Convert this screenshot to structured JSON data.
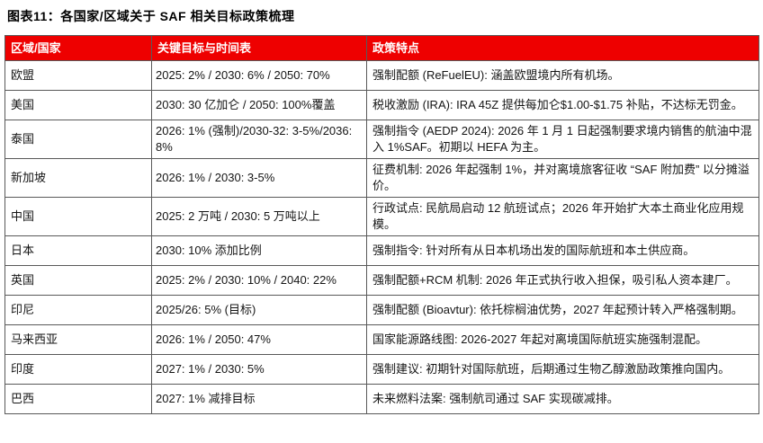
{
  "title": "图表11：各国家/区域关于 SAF 相关目标政策梳理",
  "colors": {
    "header_bg": "#ee0000",
    "header_text": "#ffffff",
    "border": "#595959",
    "text": "#141414"
  },
  "table": {
    "headers": [
      "区域/国家",
      "关键目标与时间表",
      "政策特点"
    ],
    "rows": [
      {
        "region": "欧盟",
        "target": "2025: 2% / 2030: 6% / 2050: 70%",
        "policy": "强制配额 (ReFuelEU): 涵盖欧盟境内所有机场。"
      },
      {
        "region": "美国",
        "target": "2030: 30 亿加仑 / 2050: 100%覆盖",
        "policy": "税收激励 (IRA): IRA 45Z 提供每加仑$1.00-$1.75 补贴，不达标无罚金。"
      },
      {
        "region": "泰国",
        "target": "2026: 1% (强制)/2030-32: 3-5%/2036: 8%",
        "policy": "强制指令 (AEDP 2024): 2026 年 1 月 1 日起强制要求境内销售的航油中混入 1%SAF。初期以 HEFA 为主。"
      },
      {
        "region": "新加坡",
        "target": "2026: 1% / 2030: 3-5%",
        "policy": "征费机制: 2026 年起强制 1%，并对离境旅客征收 “SAF 附加费” 以分摊溢价。"
      },
      {
        "region": "中国",
        "target": "2025: 2 万吨 / 2030: 5 万吨以上",
        "policy": "行政试点: 民航局启动 12 航班试点；2026 年开始扩大本土商业化应用规模。"
      },
      {
        "region": "日本",
        "target": "2030: 10% 添加比例",
        "policy": "强制指令: 针对所有从日本机场出发的国际航班和本土供应商。"
      },
      {
        "region": "英国",
        "target": "2025: 2% / 2030: 10% / 2040: 22%",
        "policy": "强制配额+RCM 机制: 2026 年正式执行收入担保，吸引私人资本建厂。"
      },
      {
        "region": "印尼",
        "target": "2025/26: 5% (目标)",
        "policy": "强制配额 (Bioavtur): 依托棕榈油优势，2027 年起预计转入严格强制期。"
      },
      {
        "region": "马来西亚",
        "target": "2026: 1% / 2050: 47%",
        "policy": "国家能源路线图: 2026-2027 年起对离境国际航班实施强制混配。"
      },
      {
        "region": "印度",
        "target": "2027: 1% / 2030: 5%",
        "policy": "强制建议: 初期针对国际航班，后期通过生物乙醇激励政策推向国内。"
      },
      {
        "region": "巴西",
        "target": "2027: 1% 减排目标",
        "policy": "未来燃料法案: 强制航司通过 SAF 实现碳减排。"
      }
    ]
  }
}
